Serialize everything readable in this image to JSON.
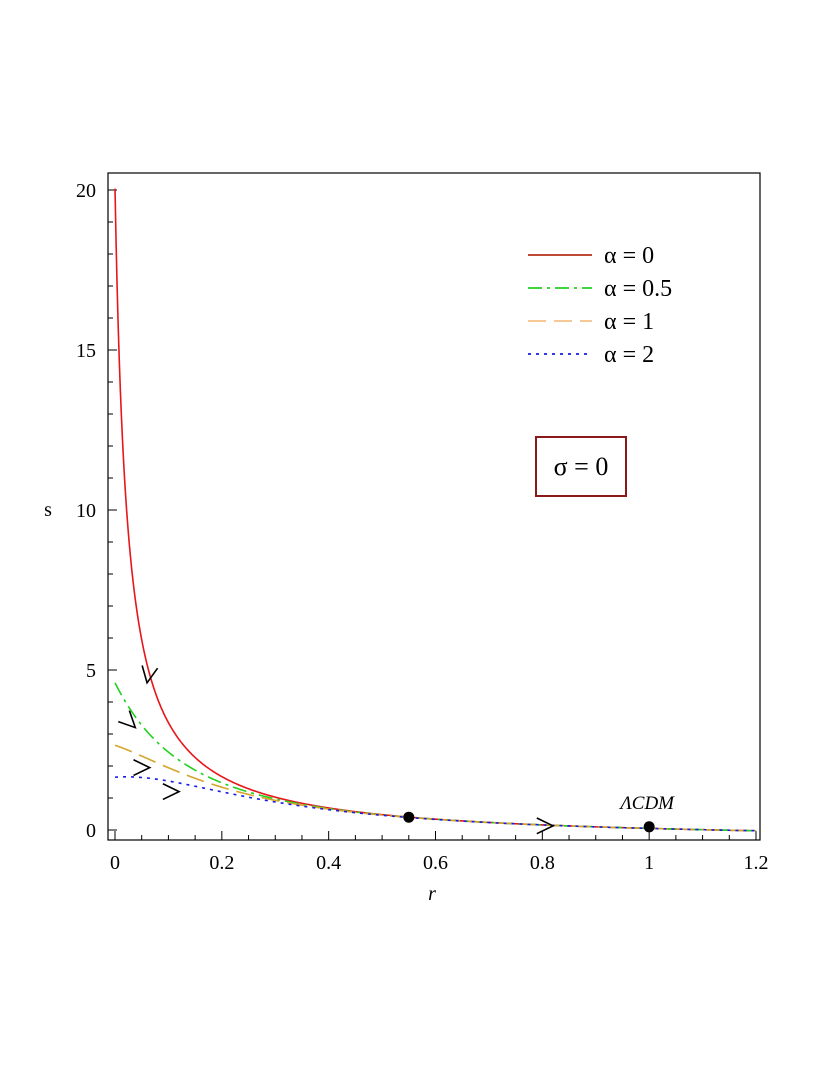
{
  "chart_data": {
    "type": "line",
    "xlabel": "r",
    "ylabel": "s",
    "xlim": [
      -0.01,
      1.2
    ],
    "ylim": [
      -0.3,
      20.5
    ],
    "xticks": [
      0,
      0.2,
      0.4,
      0.6,
      0.8,
      1,
      1.2
    ],
    "xtick_labels": [
      "0",
      "0.2",
      "0.4",
      "0.6",
      "0.8",
      "1",
      "1.2"
    ],
    "yticks": [
      0,
      5,
      10,
      15,
      20
    ],
    "ytick_labels": [
      "0",
      "5",
      "10",
      "15",
      "20"
    ],
    "grid": false,
    "legend_position": "top-right",
    "series": [
      {
        "name": "α = 0",
        "color": "#e8151a",
        "legend_color": "#b5301a",
        "style": "solid",
        "x_start": 0.0,
        "s_at_start": 20.3
      },
      {
        "name": "α = 0.5",
        "color": "#22d01f",
        "style": "dashdot",
        "x_start": 0.0,
        "s_at_start": 4.6
      },
      {
        "name": "α = 1",
        "color": "#d4a52a",
        "legend_color": "#f5c08a",
        "style": "longdash",
        "x_start": 0.0,
        "s_at_start": 2.65
      },
      {
        "name": "α = 2",
        "color": "#1a1ae6",
        "style": "dotted",
        "x_start": 0.0,
        "s_at_start": 1.65
      }
    ],
    "points": [
      {
        "x": 0.55,
        "y": 0.4,
        "label": ""
      },
      {
        "x": 1.0,
        "y": 0.1,
        "label": "ΛCDM"
      }
    ],
    "arrows": [
      {
        "x": 0.06,
        "y": 4.6,
        "direction": "down"
      },
      {
        "x": 0.038,
        "y": 3.2,
        "direction": "down-right"
      },
      {
        "x": 0.065,
        "y": 1.95,
        "direction": "right"
      },
      {
        "x": 0.12,
        "y": 1.2,
        "direction": "right"
      },
      {
        "x": 0.82,
        "y": 0.13,
        "direction": "right"
      }
    ],
    "annotation_box": {
      "text": "σ = 0",
      "border_color": "#8a1a1a"
    }
  }
}
